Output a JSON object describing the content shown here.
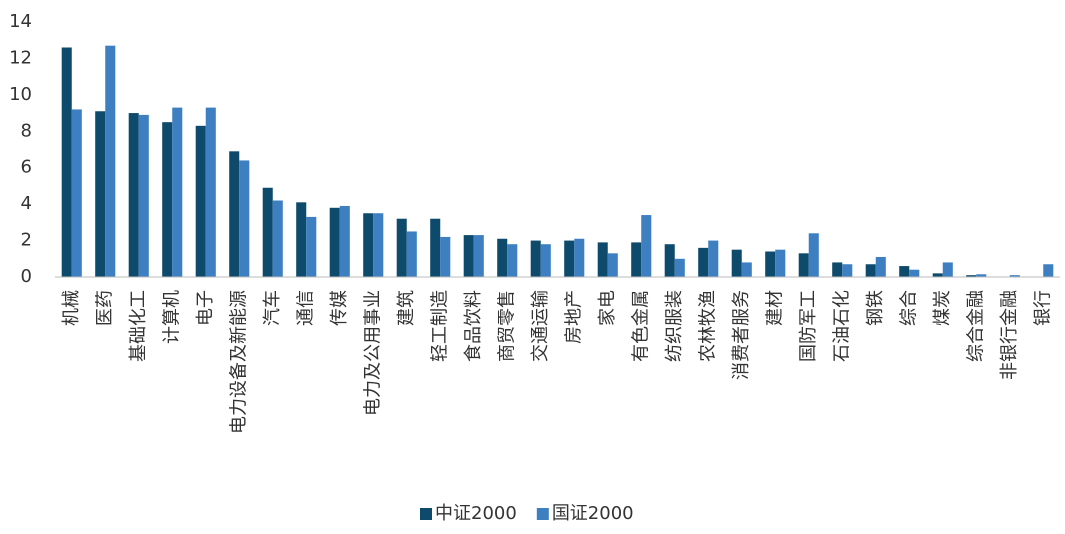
{
  "chart_data": {
    "type": "bar",
    "categories": [
      "机械",
      "医药",
      "基础化工",
      "计算机",
      "电子",
      "电力设备及新能源",
      "汽车",
      "通信",
      "传媒",
      "电力及公用事业",
      "建筑",
      "轻工制造",
      "食品饮料",
      "商贸零售",
      "交通运输",
      "房地产",
      "家电",
      "有色金属",
      "纺织服装",
      "农林牧渔",
      "消费者服务",
      "建材",
      "国防军工",
      "石油石化",
      "钢铁",
      "综合",
      "煤炭",
      "综合金融",
      "非银行金融",
      "银行"
    ],
    "series": [
      {
        "name": "中证2000",
        "color": "#0d4a6b",
        "values": [
          12.6,
          9.1,
          9.0,
          8.5,
          8.3,
          6.9,
          4.9,
          4.1,
          3.8,
          3.5,
          3.2,
          3.2,
          2.3,
          2.1,
          2.0,
          2.0,
          1.9,
          1.9,
          1.8,
          1.6,
          1.5,
          1.4,
          1.3,
          0.8,
          0.7,
          0.6,
          0.2,
          0.1,
          0,
          0
        ]
      },
      {
        "name": "国证2000",
        "color": "#3d7fc1",
        "values": [
          9.2,
          12.7,
          8.9,
          9.3,
          9.3,
          6.4,
          4.2,
          3.3,
          3.9,
          3.5,
          2.5,
          2.2,
          2.3,
          1.8,
          1.8,
          2.1,
          1.3,
          3.4,
          1.0,
          2.0,
          0.8,
          1.5,
          2.4,
          0.7,
          1.1,
          0.4,
          0.8,
          0.15,
          0.1,
          0.7
        ]
      }
    ],
    "ylim": [
      0,
      14
    ],
    "yticks": [
      0,
      2,
      4,
      6,
      8,
      10,
      12,
      14
    ],
    "grid": false,
    "legend": "bottom"
  }
}
